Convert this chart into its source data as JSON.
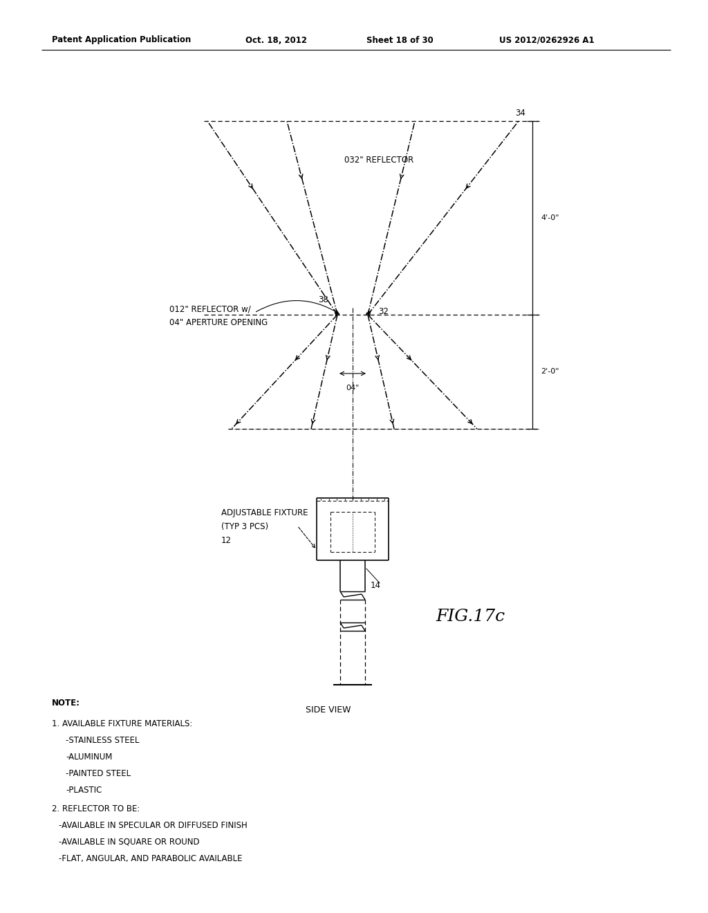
{
  "bg_color": "#ffffff",
  "header_left": "Patent Application Publication",
  "header_date": "Oct. 18, 2012",
  "header_sheet": "Sheet 18 of 30",
  "header_patent": "US 2012/0262926 A1",
  "fig_label": "FIG.17c",
  "side_view_label": "SIDE VIEW",
  "note_lines": [
    "NOTE:",
    "  1. AVAILABLE FIXTURE MATERIALS:",
    "     -STAINLESS STEEL",
    "     -ALUMINUM",
    "     -PAINTED STEEL",
    "     -PLASTIC",
    "  2. REFLECTOR TO BE:",
    "   -AVAILABLE IN SPECULAR OR DIFFUSED FINISH",
    "   -AVAILABLE IN SQUARE OR ROUND",
    "   -FLAT, ANGULAR, AND PARABOLIC AVAILABLE"
  ]
}
